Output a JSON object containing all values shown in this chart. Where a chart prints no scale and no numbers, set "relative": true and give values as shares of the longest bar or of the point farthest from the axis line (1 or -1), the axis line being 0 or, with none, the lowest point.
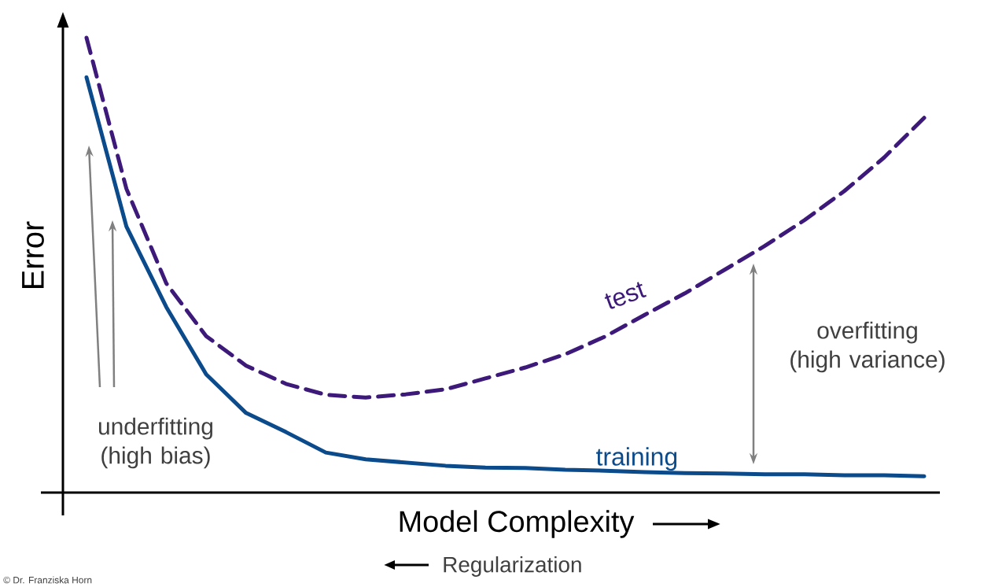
{
  "chart_data": {
    "type": "line",
    "relative": true,
    "xlabel": "Model Complexity",
    "ylabel": "Error",
    "legend": false,
    "categories": [
      null,
      null,
      null,
      null,
      null,
      null,
      null,
      null,
      null,
      null,
      null,
      null,
      null,
      null,
      null,
      null,
      null,
      null,
      null,
      null,
      null,
      null
    ],
    "series": [
      {
        "name": "training",
        "color": "#0b4a8b",
        "line_style": "solid",
        "values": [
          0.913,
          0.585,
          0.408,
          0.26,
          0.175,
          0.133,
          0.088,
          0.073,
          0.066,
          0.059,
          0.055,
          0.054,
          0.05,
          0.048,
          0.045,
          0.043,
          0.042,
          0.04,
          0.04,
          0.038,
          0.038,
          0.036
        ]
      },
      {
        "name": "test",
        "color": "#3d1a7a",
        "line_style": "dashed",
        "values": [
          1.0,
          0.668,
          0.46,
          0.344,
          0.279,
          0.239,
          0.215,
          0.209,
          0.216,
          0.227,
          0.251,
          0.275,
          0.304,
          0.343,
          0.391,
          0.438,
          0.49,
          0.542,
          0.599,
          0.663,
          0.737,
          0.824
        ]
      }
    ],
    "annotations": [
      "underfitting (high bias)",
      "overfitting (high variance)",
      "Regularization",
      "© Dr. Franziska Horn"
    ]
  }
}
